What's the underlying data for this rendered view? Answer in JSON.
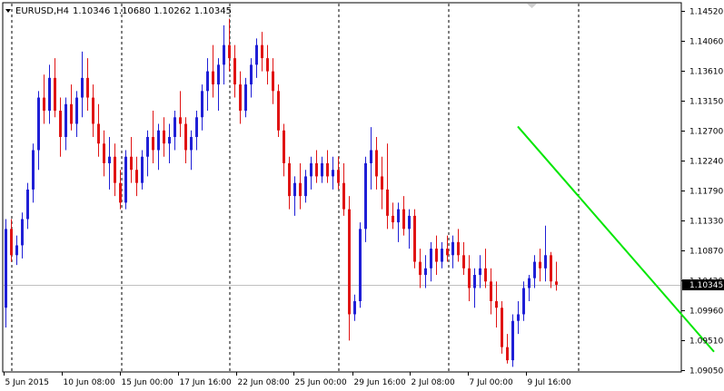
{
  "header": {
    "symbol": "EURUSD,H4",
    "ohlc": "1.10346 1.10680 1.10262 1.10345",
    "menu_icon": "triangle-down-icon"
  },
  "colors": {
    "bull": "#1f1fd6",
    "bear": "#e01414",
    "trendline": "#00e600",
    "grid": "#000000",
    "price_line": "#c0c0c0",
    "price_tag_bg": "#000000",
    "background": "#ffffff"
  },
  "chart_data": {
    "type": "candlestick",
    "symbol": "EURUSD",
    "timeframe": "H4",
    "ylim": [
      1.0905,
      1.1452
    ],
    "y_ticks": [
      "1.14520",
      "1.14060",
      "1.13610",
      "1.13150",
      "1.12700",
      "1.12240",
      "1.11790",
      "1.11330",
      "1.10870",
      "1.10420",
      "1.09960",
      "1.09510",
      "1.09050"
    ],
    "x_ticks": [
      "5 Jun 2015",
      "10 Jun 08:00",
      "15 Jun 00:00",
      "17 Jun 16:00",
      "22 Jun 08:00",
      "25 Jun 00:00",
      "29 Jun 16:00",
      "2 Jul 08:00",
      "7 Jul 00:00",
      "9 Jul 16:00"
    ],
    "current_price": 1.10345,
    "current_price_label": "1.10345",
    "trendline": {
      "start": [
        94,
        1.1276
      ],
      "end": [
        130,
        1.0933
      ]
    },
    "candles": [
      [
        1.1,
        1.1135,
        1.097,
        1.112
      ],
      [
        1.112,
        1.1135,
        1.107,
        1.108
      ],
      [
        1.108,
        1.111,
        1.1065,
        1.1095
      ],
      [
        1.1095,
        1.1145,
        1.1075,
        1.1135
      ],
      [
        1.1135,
        1.119,
        1.112,
        1.118
      ],
      [
        1.118,
        1.125,
        1.116,
        1.124
      ],
      [
        1.124,
        1.133,
        1.121,
        1.132
      ],
      [
        1.132,
        1.1355,
        1.128,
        1.13
      ],
      [
        1.13,
        1.137,
        1.128,
        1.135
      ],
      [
        1.135,
        1.138,
        1.129,
        1.13
      ],
      [
        1.13,
        1.132,
        1.123,
        1.126
      ],
      [
        1.126,
        1.132,
        1.124,
        1.131
      ],
      [
        1.131,
        1.134,
        1.127,
        1.128
      ],
      [
        1.128,
        1.133,
        1.126,
        1.132
      ],
      [
        1.132,
        1.139,
        1.129,
        1.135
      ],
      [
        1.135,
        1.138,
        1.13,
        1.132
      ],
      [
        1.132,
        1.134,
        1.126,
        1.128
      ],
      [
        1.128,
        1.131,
        1.123,
        1.125
      ],
      [
        1.125,
        1.127,
        1.12,
        1.122
      ],
      [
        1.122,
        1.126,
        1.118,
        1.123
      ],
      [
        1.123,
        1.125,
        1.117,
        1.119
      ],
      [
        1.119,
        1.121,
        1.115,
        1.116
      ],
      [
        1.116,
        1.124,
        1.115,
        1.123
      ],
      [
        1.123,
        1.126,
        1.119,
        1.121
      ],
      [
        1.121,
        1.123,
        1.117,
        1.119
      ],
      [
        1.119,
        1.124,
        1.118,
        1.123
      ],
      [
        1.123,
        1.127,
        1.12,
        1.126
      ],
      [
        1.126,
        1.13,
        1.122,
        1.124
      ],
      [
        1.124,
        1.128,
        1.121,
        1.127
      ],
      [
        1.127,
        1.129,
        1.123,
        1.125
      ],
      [
        1.125,
        1.128,
        1.122,
        1.126
      ],
      [
        1.126,
        1.13,
        1.124,
        1.129
      ],
      [
        1.129,
        1.133,
        1.126,
        1.128
      ],
      [
        1.128,
        1.129,
        1.122,
        1.124
      ],
      [
        1.124,
        1.127,
        1.121,
        1.126
      ],
      [
        1.126,
        1.13,
        1.124,
        1.129
      ],
      [
        1.129,
        1.134,
        1.127,
        1.133
      ],
      [
        1.133,
        1.138,
        1.13,
        1.136
      ],
      [
        1.136,
        1.14,
        1.132,
        1.134
      ],
      [
        1.134,
        1.138,
        1.13,
        1.137
      ],
      [
        1.137,
        1.143,
        1.134,
        1.14
      ],
      [
        1.14,
        1.144,
        1.136,
        1.138
      ],
      [
        1.138,
        1.14,
        1.132,
        1.134
      ],
      [
        1.134,
        1.136,
        1.128,
        1.13
      ],
      [
        1.13,
        1.135,
        1.129,
        1.134
      ],
      [
        1.134,
        1.138,
        1.132,
        1.137
      ],
      [
        1.137,
        1.141,
        1.135,
        1.14
      ],
      [
        1.14,
        1.142,
        1.136,
        1.138
      ],
      [
        1.138,
        1.14,
        1.134,
        1.136
      ],
      [
        1.136,
        1.138,
        1.131,
        1.133
      ],
      [
        1.133,
        1.134,
        1.126,
        1.127
      ],
      [
        1.127,
        1.128,
        1.12,
        1.122
      ],
      [
        1.122,
        1.123,
        1.115,
        1.117
      ],
      [
        1.117,
        1.12,
        1.114,
        1.119
      ],
      [
        1.119,
        1.122,
        1.115,
        1.117
      ],
      [
        1.117,
        1.121,
        1.116,
        1.12
      ],
      [
        1.12,
        1.123,
        1.118,
        1.122
      ],
      [
        1.122,
        1.124,
        1.119,
        1.12
      ],
      [
        1.12,
        1.123,
        1.119,
        1.122
      ],
      [
        1.122,
        1.124,
        1.119,
        1.12
      ],
      [
        1.12,
        1.123,
        1.118,
        1.121
      ],
      [
        1.121,
        1.123,
        1.118,
        1.119
      ],
      [
        1.119,
        1.122,
        1.114,
        1.115
      ],
      [
        1.115,
        1.117,
        1.095,
        1.099
      ],
      [
        1.099,
        1.102,
        1.098,
        1.101
      ],
      [
        1.101,
        1.113,
        1.1,
        1.112
      ],
      [
        1.112,
        1.123,
        1.11,
        1.122
      ],
      [
        1.122,
        1.1275,
        1.118,
        1.124
      ],
      [
        1.124,
        1.126,
        1.118,
        1.12
      ],
      [
        1.12,
        1.123,
        1.115,
        1.118
      ],
      [
        1.118,
        1.125,
        1.112,
        1.114
      ],
      [
        1.114,
        1.116,
        1.112,
        1.113
      ],
      [
        1.113,
        1.116,
        1.11,
        1.115
      ],
      [
        1.115,
        1.117,
        1.111,
        1.112
      ],
      [
        1.112,
        1.115,
        1.109,
        1.114
      ],
      [
        1.114,
        1.115,
        1.106,
        1.107
      ],
      [
        1.107,
        1.109,
        1.103,
        1.105
      ],
      [
        1.105,
        1.108,
        1.103,
        1.106
      ],
      [
        1.106,
        1.11,
        1.104,
        1.109
      ],
      [
        1.109,
        1.111,
        1.105,
        1.107
      ],
      [
        1.107,
        1.11,
        1.106,
        1.109
      ],
      [
        1.109,
        1.111,
        1.107,
        1.108
      ],
      [
        1.108,
        1.111,
        1.106,
        1.11
      ],
      [
        1.11,
        1.112,
        1.107,
        1.108
      ],
      [
        1.108,
        1.11,
        1.105,
        1.106
      ],
      [
        1.106,
        1.108,
        1.101,
        1.103
      ],
      [
        1.103,
        1.106,
        1.1,
        1.105
      ],
      [
        1.105,
        1.108,
        1.103,
        1.106
      ],
      [
        1.106,
        1.109,
        1.103,
        1.104
      ],
      [
        1.104,
        1.106,
        1.099,
        1.101
      ],
      [
        1.101,
        1.104,
        1.097,
        1.1
      ],
      [
        1.1,
        1.101,
        1.093,
        1.094
      ],
      [
        1.094,
        1.096,
        1.0915,
        1.092
      ],
      [
        1.092,
        1.099,
        1.091,
        1.098
      ],
      [
        1.098,
        1.101,
        1.096,
        1.099
      ],
      [
        1.099,
        1.104,
        1.098,
        1.103
      ],
      [
        1.103,
        1.105,
        1.101,
        1.1045
      ],
      [
        1.1045,
        1.108,
        1.103,
        1.107
      ],
      [
        1.107,
        1.109,
        1.104,
        1.106
      ],
      [
        1.106,
        1.1125,
        1.104,
        1.108
      ],
      [
        1.108,
        1.1085,
        1.103,
        1.104
      ],
      [
        1.104,
        1.107,
        1.1026,
        1.1035
      ]
    ]
  }
}
